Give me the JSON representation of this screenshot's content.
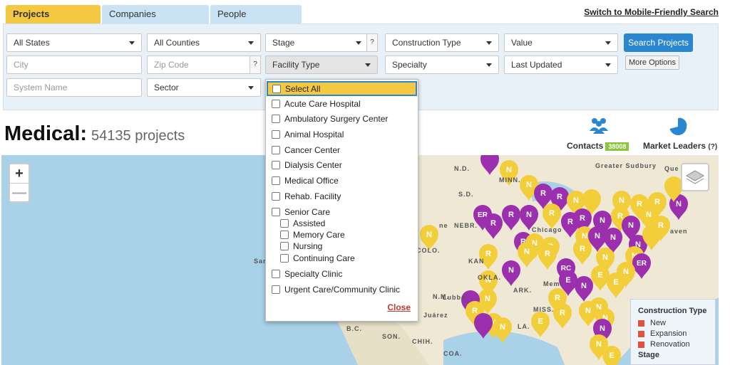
{
  "tabs": [
    "Projects",
    "Companies",
    "People"
  ],
  "mobile_link": "Switch to Mobile-Friendly Search",
  "filters": {
    "states": "All States",
    "counties": "All Counties",
    "stage": "Stage",
    "construction_type": "Construction Type",
    "value": "Value",
    "city_placeholder": "City",
    "zip_placeholder": "Zip Code",
    "facility_type": "Facility Type",
    "specialty": "Specialty",
    "last_updated": "Last Updated",
    "system_placeholder": "System Name",
    "sector": "Sector",
    "help": "?"
  },
  "buttons": {
    "search": "Search Projects",
    "more": "More Options"
  },
  "heading": {
    "title": "Medical:",
    "count": "54135 projects"
  },
  "stats": {
    "contacts_label": "Contacts",
    "contacts_count": "38008",
    "leaders_label": "Market Leaders",
    "leaders_help": "(?)"
  },
  "facility_dropdown": {
    "select_all": "Select All",
    "options": [
      "Acute Care Hospital",
      "Ambulatory Surgery Center",
      "Animal Hospital",
      "Cancer Center",
      "Dialysis Center",
      "Medical Office",
      "Rehab. Facility",
      "Senior Care"
    ],
    "senior_sub": [
      "Assisted",
      "Memory Care",
      "Nursing",
      "Continuing Care"
    ],
    "tail": [
      "Specialty Clinic",
      "Urgent Care/Community Clinic"
    ],
    "close": "Close"
  },
  "map": {
    "zoom_in": "+",
    "zoom_out": "—",
    "labels": [
      "N.D.",
      "MINN.",
      "Greater Sudbury",
      "Que",
      "S.D.",
      "NEBR.",
      "Chicago",
      "COLO.",
      "KAN",
      "OKLA.",
      "ARK.",
      "N.M.",
      "Lubbo",
      "Juárez",
      "MISS.",
      "LA.",
      "B.C.",
      "SON.",
      "CHIH.",
      "COA.",
      "Sar",
      "ne",
      "aven",
      "Memi"
    ],
    "legend_title": "Construction Type",
    "legend_items": [
      "New",
      "Expansion",
      "Renovation"
    ],
    "legend_stage": "Stage",
    "colors": {
      "yellow": "#f2cf3a",
      "purple": "#9b2fae",
      "red": "#e0523b"
    }
  }
}
